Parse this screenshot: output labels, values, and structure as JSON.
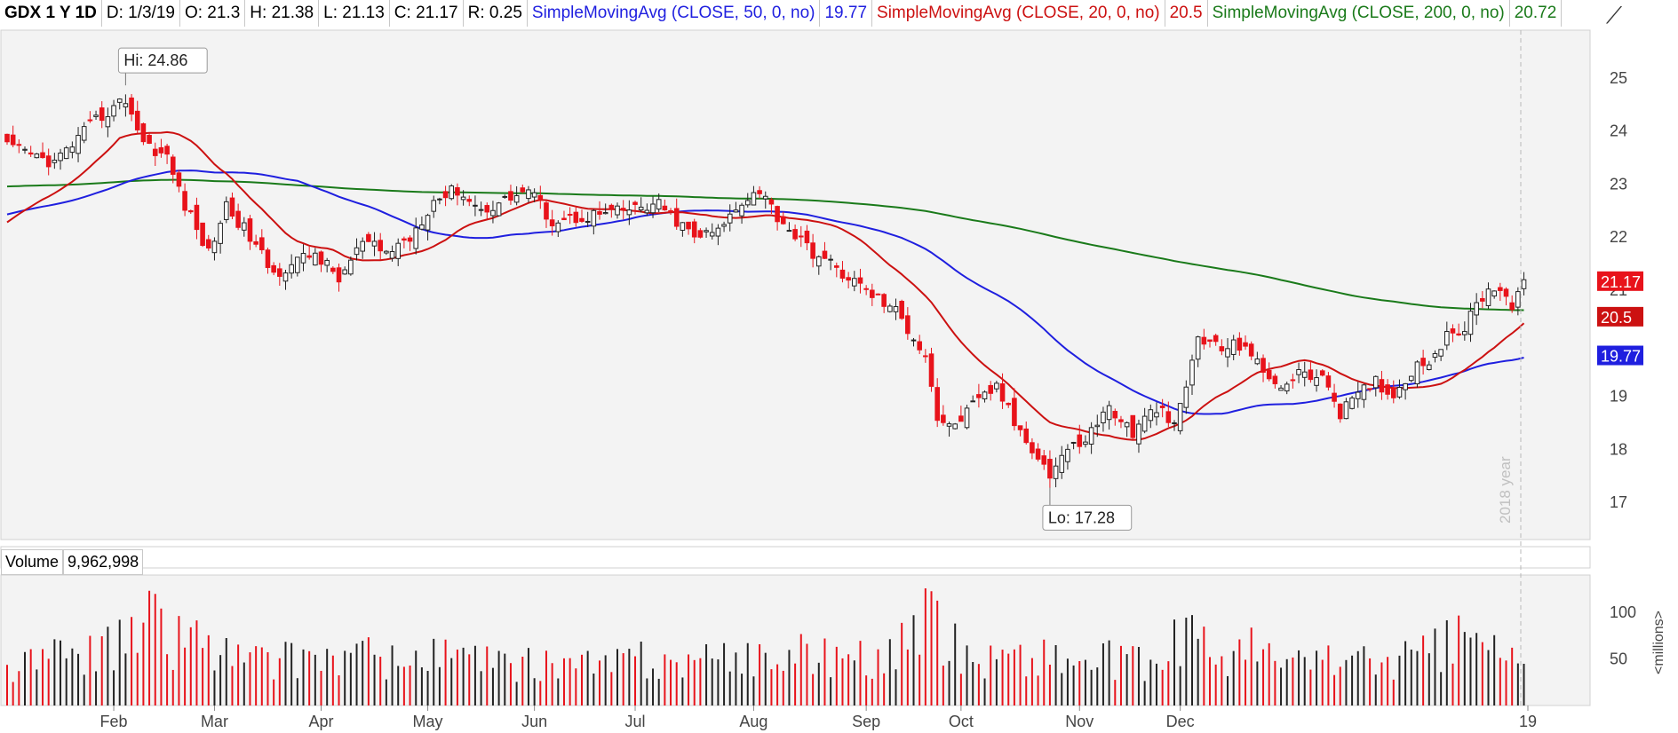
{
  "header": {
    "symbol": "GDX 1 Y 1D",
    "date": "D: 1/3/19",
    "open": "O: 21.3",
    "high": "H: 21.38",
    "low": "L: 21.13",
    "close": "C: 21.17",
    "range": "R: 0.25",
    "sma50_label": "SimpleMovingAvg (CLOSE, 50, 0, no)",
    "sma50_value": "19.77",
    "sma20_label": "SimpleMovingAvg (CLOSE, 20, 0, no)",
    "sma20_value": "20.5",
    "sma200_label": "SimpleMovingAvg (CLOSE, 200, 0, no)",
    "sma200_value": "20.72"
  },
  "settings_icon": "drawing-tool-icon",
  "colors": {
    "up": "#222222",
    "down": "#e8131b",
    "sma50": "#1f1fdf",
    "sma20": "#cc1111",
    "sma200": "#1a7a1a",
    "plot_bg": "#f3f3f3",
    "grid": "#c8c8c8"
  },
  "volume": {
    "label": "Volume",
    "value": "9,962,998",
    "unit": "<millions>"
  },
  "chart_data": [
    {
      "type": "candlestick",
      "title": "",
      "ylim": [
        16.3,
        25.9
      ],
      "y_ticks": [
        "17",
        "18",
        "19",
        "21",
        "22",
        "23",
        "24",
        "25"
      ],
      "x_ticks": [
        "Feb",
        "Mar",
        "Apr",
        "May",
        "Jun",
        "Jul",
        "Aug",
        "Sep",
        "Oct",
        "Nov",
        "Dec",
        "19"
      ],
      "year_marker": "2018 year",
      "hi_callout": "Hi: 24.86",
      "lo_callout": "Lo: 17.28",
      "hi_value": 24.86,
      "lo_value": 17.28,
      "price_tags": [
        {
          "label": "21.17",
          "value": 21.17,
          "color": "#e8131b"
        },
        {
          "label": "20.5",
          "value": 20.5,
          "color": "#cc1111"
        },
        {
          "label": "19.77",
          "value": 19.77,
          "color": "#1f1fdf"
        }
      ],
      "close_anchors": [
        [
          0,
          23.7
        ],
        [
          8,
          23.4
        ],
        [
          15,
          24.2
        ],
        [
          20,
          24.6
        ],
        [
          23,
          23.8
        ],
        [
          27,
          23.5
        ],
        [
          30,
          22.6
        ],
        [
          34,
          21.7
        ],
        [
          37,
          22.6
        ],
        [
          41,
          22.0
        ],
        [
          45,
          21.3
        ],
        [
          48,
          21.5
        ],
        [
          52,
          21.7
        ],
        [
          56,
          21.2
        ],
        [
          60,
          21.9
        ],
        [
          64,
          21.7
        ],
        [
          68,
          22.0
        ],
        [
          72,
          22.7
        ],
        [
          76,
          22.9
        ],
        [
          80,
          22.5
        ],
        [
          84,
          22.7
        ],
        [
          88,
          22.9
        ],
        [
          92,
          22.3
        ],
        [
          98,
          22.4
        ],
        [
          104,
          22.5
        ],
        [
          110,
          22.6
        ],
        [
          116,
          22.0
        ],
        [
          120,
          22.1
        ],
        [
          124,
          22.7
        ],
        [
          127,
          22.9
        ],
        [
          130,
          22.4
        ],
        [
          135,
          21.8
        ],
        [
          140,
          21.4
        ],
        [
          145,
          21.0
        ],
        [
          150,
          20.6
        ],
        [
          155,
          19.8
        ],
        [
          157,
          18.6
        ],
        [
          159,
          18.4
        ],
        [
          164,
          18.9
        ],
        [
          167,
          19.2
        ],
        [
          170,
          18.5
        ],
        [
          174,
          17.9
        ],
        [
          176,
          17.5
        ],
        [
          178,
          17.9
        ],
        [
          182,
          18.2
        ],
        [
          186,
          18.8
        ],
        [
          190,
          18.3
        ],
        [
          194,
          18.8
        ],
        [
          197,
          18.4
        ],
        [
          199,
          19.2
        ],
        [
          201,
          20.1
        ],
        [
          205,
          19.9
        ],
        [
          209,
          20.0
        ],
        [
          212,
          19.4
        ],
        [
          216,
          19.2
        ],
        [
          219,
          19.5
        ],
        [
          223,
          19.2
        ],
        [
          225,
          18.7
        ],
        [
          228,
          19.0
        ],
        [
          231,
          19.3
        ],
        [
          234,
          19.0
        ],
        [
          237,
          19.5
        ],
        [
          240,
          19.7
        ],
        [
          243,
          20.1
        ],
        [
          246,
          20.3
        ],
        [
          249,
          20.9
        ],
        [
          252,
          21.1
        ],
        [
          254,
          20.7
        ],
        [
          256,
          21.2
        ]
      ],
      "volume_anchors": [
        [
          0,
          40
        ],
        [
          10,
          55
        ],
        [
          20,
          65
        ],
        [
          22,
          80
        ],
        [
          25,
          100
        ],
        [
          27,
          55
        ],
        [
          30,
          85
        ],
        [
          35,
          60
        ],
        [
          40,
          50
        ],
        [
          45,
          45
        ],
        [
          50,
          55
        ],
        [
          55,
          50
        ],
        [
          60,
          55
        ],
        [
          65,
          45
        ],
        [
          70,
          50
        ],
        [
          75,
          55
        ],
        [
          80,
          45
        ],
        [
          85,
          40
        ],
        [
          90,
          45
        ],
        [
          95,
          45
        ],
        [
          100,
          40
        ],
        [
          105,
          50
        ],
        [
          110,
          45
        ],
        [
          115,
          50
        ],
        [
          120,
          45
        ],
        [
          125,
          55
        ],
        [
          130,
          50
        ],
        [
          135,
          55
        ],
        [
          140,
          55
        ],
        [
          145,
          50
        ],
        [
          150,
          55
        ],
        [
          155,
          90
        ],
        [
          158,
          75
        ],
        [
          162,
          55
        ],
        [
          165,
          50
        ],
        [
          168,
          55
        ],
        [
          172,
          50
        ],
        [
          175,
          55
        ],
        [
          178,
          50
        ],
        [
          182,
          45
        ],
        [
          186,
          50
        ],
        [
          190,
          45
        ],
        [
          195,
          45
        ],
        [
          199,
          85
        ],
        [
          202,
          65
        ],
        [
          206,
          55
        ],
        [
          210,
          60
        ],
        [
          214,
          50
        ],
        [
          218,
          45
        ],
        [
          222,
          55
        ],
        [
          226,
          50
        ],
        [
          230,
          45
        ],
        [
          234,
          50
        ],
        [
          238,
          55
        ],
        [
          242,
          60
        ],
        [
          246,
          80
        ],
        [
          250,
          65
        ],
        [
          254,
          50
        ],
        [
          256,
          35
        ]
      ],
      "volume_ylim": [
        0,
        140
      ],
      "volume_ticks": [
        "50",
        "100"
      ]
    }
  ]
}
